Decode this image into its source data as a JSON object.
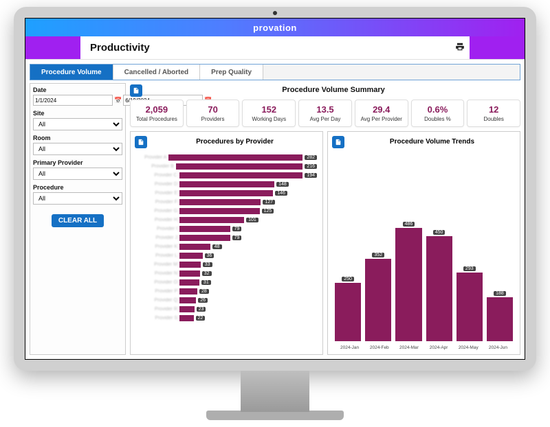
{
  "brand": "provation",
  "page_title": "Productivity",
  "tabs": [
    {
      "label": "Procedure Volume",
      "active": true
    },
    {
      "label": "Cancelled / Aborted",
      "active": false
    },
    {
      "label": "Prep Quality",
      "active": false
    }
  ],
  "filters": {
    "date_label": "Date",
    "date_start": "1/1/2024",
    "date_end": "6/19/2024",
    "site_label": "Site",
    "site_value": "All",
    "room_label": "Room",
    "room_value": "All",
    "provider_label": "Primary Provider",
    "provider_value": "All",
    "procedure_label": "Procedure",
    "procedure_value": "All",
    "clear_label": "CLEAR ALL"
  },
  "summary": {
    "title": "Procedure Volume Summary",
    "metrics": [
      {
        "value": "2,059",
        "label": "Total Procedures"
      },
      {
        "value": "70",
        "label": "Providers"
      },
      {
        "value": "152",
        "label": "Working Days"
      },
      {
        "value": "13.5",
        "label": "Avg Per Day"
      },
      {
        "value": "29.4",
        "label": "Avg Per Provider"
      },
      {
        "value": "0.6%",
        "label": "Doubles %"
      },
      {
        "value": "12",
        "label": "Doubles"
      }
    ]
  },
  "chart_providers": {
    "title": "Procedures by Provider",
    "type": "bar-horizontal",
    "bar_color": "#8a1c5c",
    "value_bg": "#444444",
    "max": 282,
    "rows": [
      {
        "label": "Provider A",
        "value": 282
      },
      {
        "label": "Provider B",
        "value": 216
      },
      {
        "label": "Provider C",
        "value": 194
      },
      {
        "label": "Provider D",
        "value": 148
      },
      {
        "label": "Provider E",
        "value": 146
      },
      {
        "label": "Provider F",
        "value": 127
      },
      {
        "label": "Provider G",
        "value": 125
      },
      {
        "label": "Provider H",
        "value": 101
      },
      {
        "label": "Provider I",
        "value": 79
      },
      {
        "label": "Provider J",
        "value": 79
      },
      {
        "label": "Provider K",
        "value": 48
      },
      {
        "label": "Provider L",
        "value": 36
      },
      {
        "label": "Provider M",
        "value": 33
      },
      {
        "label": "Provider N",
        "value": 32
      },
      {
        "label": "Provider O",
        "value": 31
      },
      {
        "label": "Provider P",
        "value": 28
      },
      {
        "label": "Provider Q",
        "value": 26
      },
      {
        "label": "Provider R",
        "value": 23
      },
      {
        "label": "Provider S",
        "value": 22
      }
    ]
  },
  "chart_trends": {
    "title": "Procedure Volume Trends",
    "type": "bar-vertical",
    "bar_color": "#8a1c5c",
    "value_bg": "#444444",
    "ymax": 500,
    "data": [
      {
        "label": "2024-Jan",
        "value": 250
      },
      {
        "label": "2024-Feb",
        "value": 352
      },
      {
        "label": "2024-Mar",
        "value": 486
      },
      {
        "label": "2024-Apr",
        "value": 450
      },
      {
        "label": "2024-May",
        "value": 293
      },
      {
        "label": "2024-Jun",
        "value": 188
      }
    ]
  },
  "colors": {
    "accent_purple": "#a020f0",
    "tab_active": "#1570c4",
    "metric_value": "#8a1c5c"
  }
}
